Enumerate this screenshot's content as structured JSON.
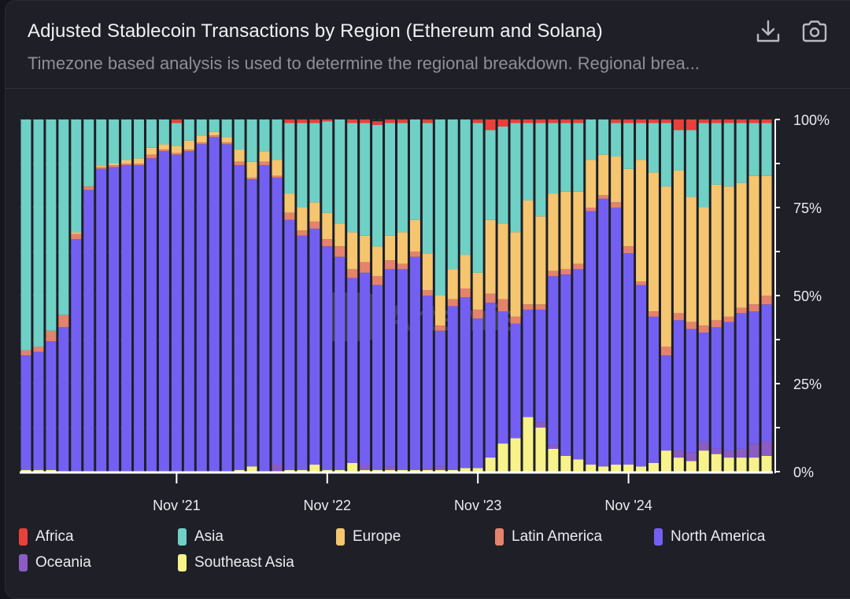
{
  "header": {
    "title": "Adjusted Stablecoin Transactions by Region (Ethereum and Solana)",
    "subtitle": "Timezone based analysis is used to determine the regional breakdown. Regional brea...",
    "download_icon": "download-icon",
    "camera_icon": "camera-icon"
  },
  "watermark": "Artemis",
  "chart_data": {
    "type": "bar",
    "stacked": true,
    "normalized": true,
    "title": "Adjusted Stablecoin Transactions by Region (Ethereum and Solana)",
    "xlabel": "",
    "ylabel": "",
    "ylim": [
      0,
      100
    ],
    "y_ticks": [
      "0%",
      "25%",
      "50%",
      "75%",
      "100%"
    ],
    "x_ticks": [
      {
        "label": "Nov '21",
        "index": 12
      },
      {
        "label": "Nov '22",
        "index": 24
      },
      {
        "label": "Nov '23",
        "index": 36
      },
      {
        "label": "Nov '24",
        "index": 48
      }
    ],
    "categories_note": "Monthly, Nov 2020 – Oct 2025",
    "n_bars": 60,
    "legend_position": "bottom",
    "series": [
      {
        "name": "Southeast Asia",
        "color": "#f7f28a",
        "values": [
          0.5,
          0.5,
          0.5,
          0,
          0,
          0,
          0,
          0,
          0,
          0,
          0,
          0,
          0,
          0,
          0,
          0,
          0,
          0.5,
          1.5,
          0,
          0,
          0.5,
          0.5,
          2,
          0.5,
          0.5,
          2.5,
          0.5,
          0.5,
          0.5,
          0.5,
          0.5,
          0.5,
          0.5,
          0.5,
          1,
          1,
          4,
          8,
          9.5,
          15.5,
          12.5,
          6.5,
          4.5,
          3.5,
          2,
          1.5,
          2,
          2,
          1.5,
          2.5,
          6,
          4,
          3,
          6,
          5,
          4,
          4,
          4,
          4.5
        ]
      },
      {
        "name": "Oceania",
        "color": "#8b5cc4",
        "values": [
          0,
          0,
          0,
          0,
          0,
          0,
          0,
          0,
          0,
          0,
          0,
          0,
          0,
          0,
          0,
          0,
          0,
          0,
          0,
          0,
          2,
          0,
          0,
          0,
          0,
          0,
          0,
          1.5,
          0,
          1,
          0,
          0,
          0.5,
          1,
          0,
          0,
          0,
          0,
          0,
          0,
          0,
          1.5,
          1,
          0,
          0,
          0,
          0,
          0,
          0,
          0,
          0,
          0,
          2,
          2.5,
          2.5,
          1.5,
          2,
          2.5,
          4,
          4
        ]
      },
      {
        "name": "North America",
        "color": "#7360f2",
        "values": [
          32.5,
          33.5,
          36.5,
          41,
          66,
          80,
          86,
          86.5,
          87,
          87,
          89,
          91,
          90,
          91,
          93,
          95,
          93,
          86.5,
          81.5,
          87,
          81.5,
          71,
          66.5,
          67,
          63.5,
          60.5,
          52.5,
          54.5,
          52.5,
          56,
          57,
          60.5,
          49,
          38.5,
          46.5,
          48.5,
          42.5,
          44,
          37.5,
          32.5,
          30.5,
          32,
          48,
          51.5,
          54,
          72,
          76,
          73,
          60,
          51.5,
          41.5,
          27,
          37,
          35,
          31,
          34.5,
          36.5,
          38.5,
          37.5,
          39
        ]
      },
      {
        "name": "Latin America",
        "color": "#e5826c",
        "values": [
          1.5,
          1.5,
          3,
          3.5,
          1.5,
          1,
          0.5,
          0.5,
          0.5,
          0.5,
          1,
          0.5,
          0.5,
          0.5,
          0.5,
          0.5,
          0.5,
          1,
          0.5,
          1,
          0.5,
          2,
          1.5,
          2,
          2,
          3,
          2.5,
          3,
          2.5,
          2.5,
          1.5,
          1.5,
          1.5,
          1.5,
          2,
          2.5,
          2.5,
          2.5,
          3.5,
          2,
          1.5,
          1.5,
          1.5,
          1.5,
          1.5,
          1,
          1,
          1.5,
          2,
          1,
          1.5,
          2.5,
          2,
          2,
          2,
          2,
          1.5,
          1.5,
          2,
          2.5
        ]
      },
      {
        "name": "Europe",
        "color": "#f5c56f",
        "values": [
          0,
          0,
          0,
          0,
          0.5,
          0,
          0.5,
          0.5,
          1,
          1.5,
          2,
          1.5,
          2,
          2.5,
          2,
          1,
          1.5,
          3.5,
          4.5,
          3,
          4.5,
          5.5,
          6.5,
          5.5,
          7.5,
          6.5,
          10.5,
          7.5,
          8.5,
          7,
          9,
          9,
          10.5,
          8.5,
          8.5,
          9.5,
          10.5,
          21,
          21.5,
          24,
          29.5,
          25,
          22,
          22,
          20.5,
          13.5,
          11.5,
          13,
          22,
          34.5,
          39.5,
          45.5,
          40.5,
          35.5,
          33.5,
          38.5,
          37,
          35.5,
          36.5,
          34
        ]
      },
      {
        "name": "Asia",
        "color": "#6fd0c5",
        "values": [
          65.5,
          64.5,
          60,
          55.5,
          32,
          19,
          13,
          12.5,
          11.5,
          11,
          8,
          7,
          6.5,
          6,
          4.5,
          3.5,
          5,
          8.5,
          12,
          9,
          11.5,
          20,
          24,
          22.5,
          26,
          29.5,
          31,
          32,
          34.5,
          32,
          31,
          28.5,
          37,
          50,
          42.5,
          38.5,
          42.5,
          25.5,
          27.5,
          31,
          22,
          26.5,
          20,
          19.5,
          19.5,
          11.5,
          10,
          9.5,
          13,
          10.5,
          14,
          18,
          11.5,
          19,
          24,
          17.5,
          18,
          17,
          15,
          15
        ]
      },
      {
        "name": "Africa",
        "color": "#e8403a",
        "values": [
          0,
          0,
          0,
          0,
          0,
          0,
          0,
          0,
          0,
          0,
          0,
          0,
          1,
          0,
          0,
          0,
          0,
          0,
          0,
          0,
          0,
          1,
          1,
          1,
          0.5,
          0,
          1,
          1,
          1,
          1,
          1,
          0,
          1,
          0,
          0,
          0,
          1,
          3,
          2,
          1,
          1,
          1,
          1,
          1,
          1,
          0,
          0,
          1,
          1,
          1,
          1,
          1,
          3,
          3,
          1,
          1,
          1,
          1,
          1,
          1
        ]
      }
    ]
  },
  "legend": [
    {
      "name": "Africa",
      "color": "#e8403a"
    },
    {
      "name": "Asia",
      "color": "#6fd0c5"
    },
    {
      "name": "Europe",
      "color": "#f5c56f"
    },
    {
      "name": "Latin America",
      "color": "#e5826c"
    },
    {
      "name": "North America",
      "color": "#7360f2"
    },
    {
      "name": "Oceania",
      "color": "#8b5cc4"
    },
    {
      "name": "Southeast Asia",
      "color": "#f7f28a"
    }
  ]
}
